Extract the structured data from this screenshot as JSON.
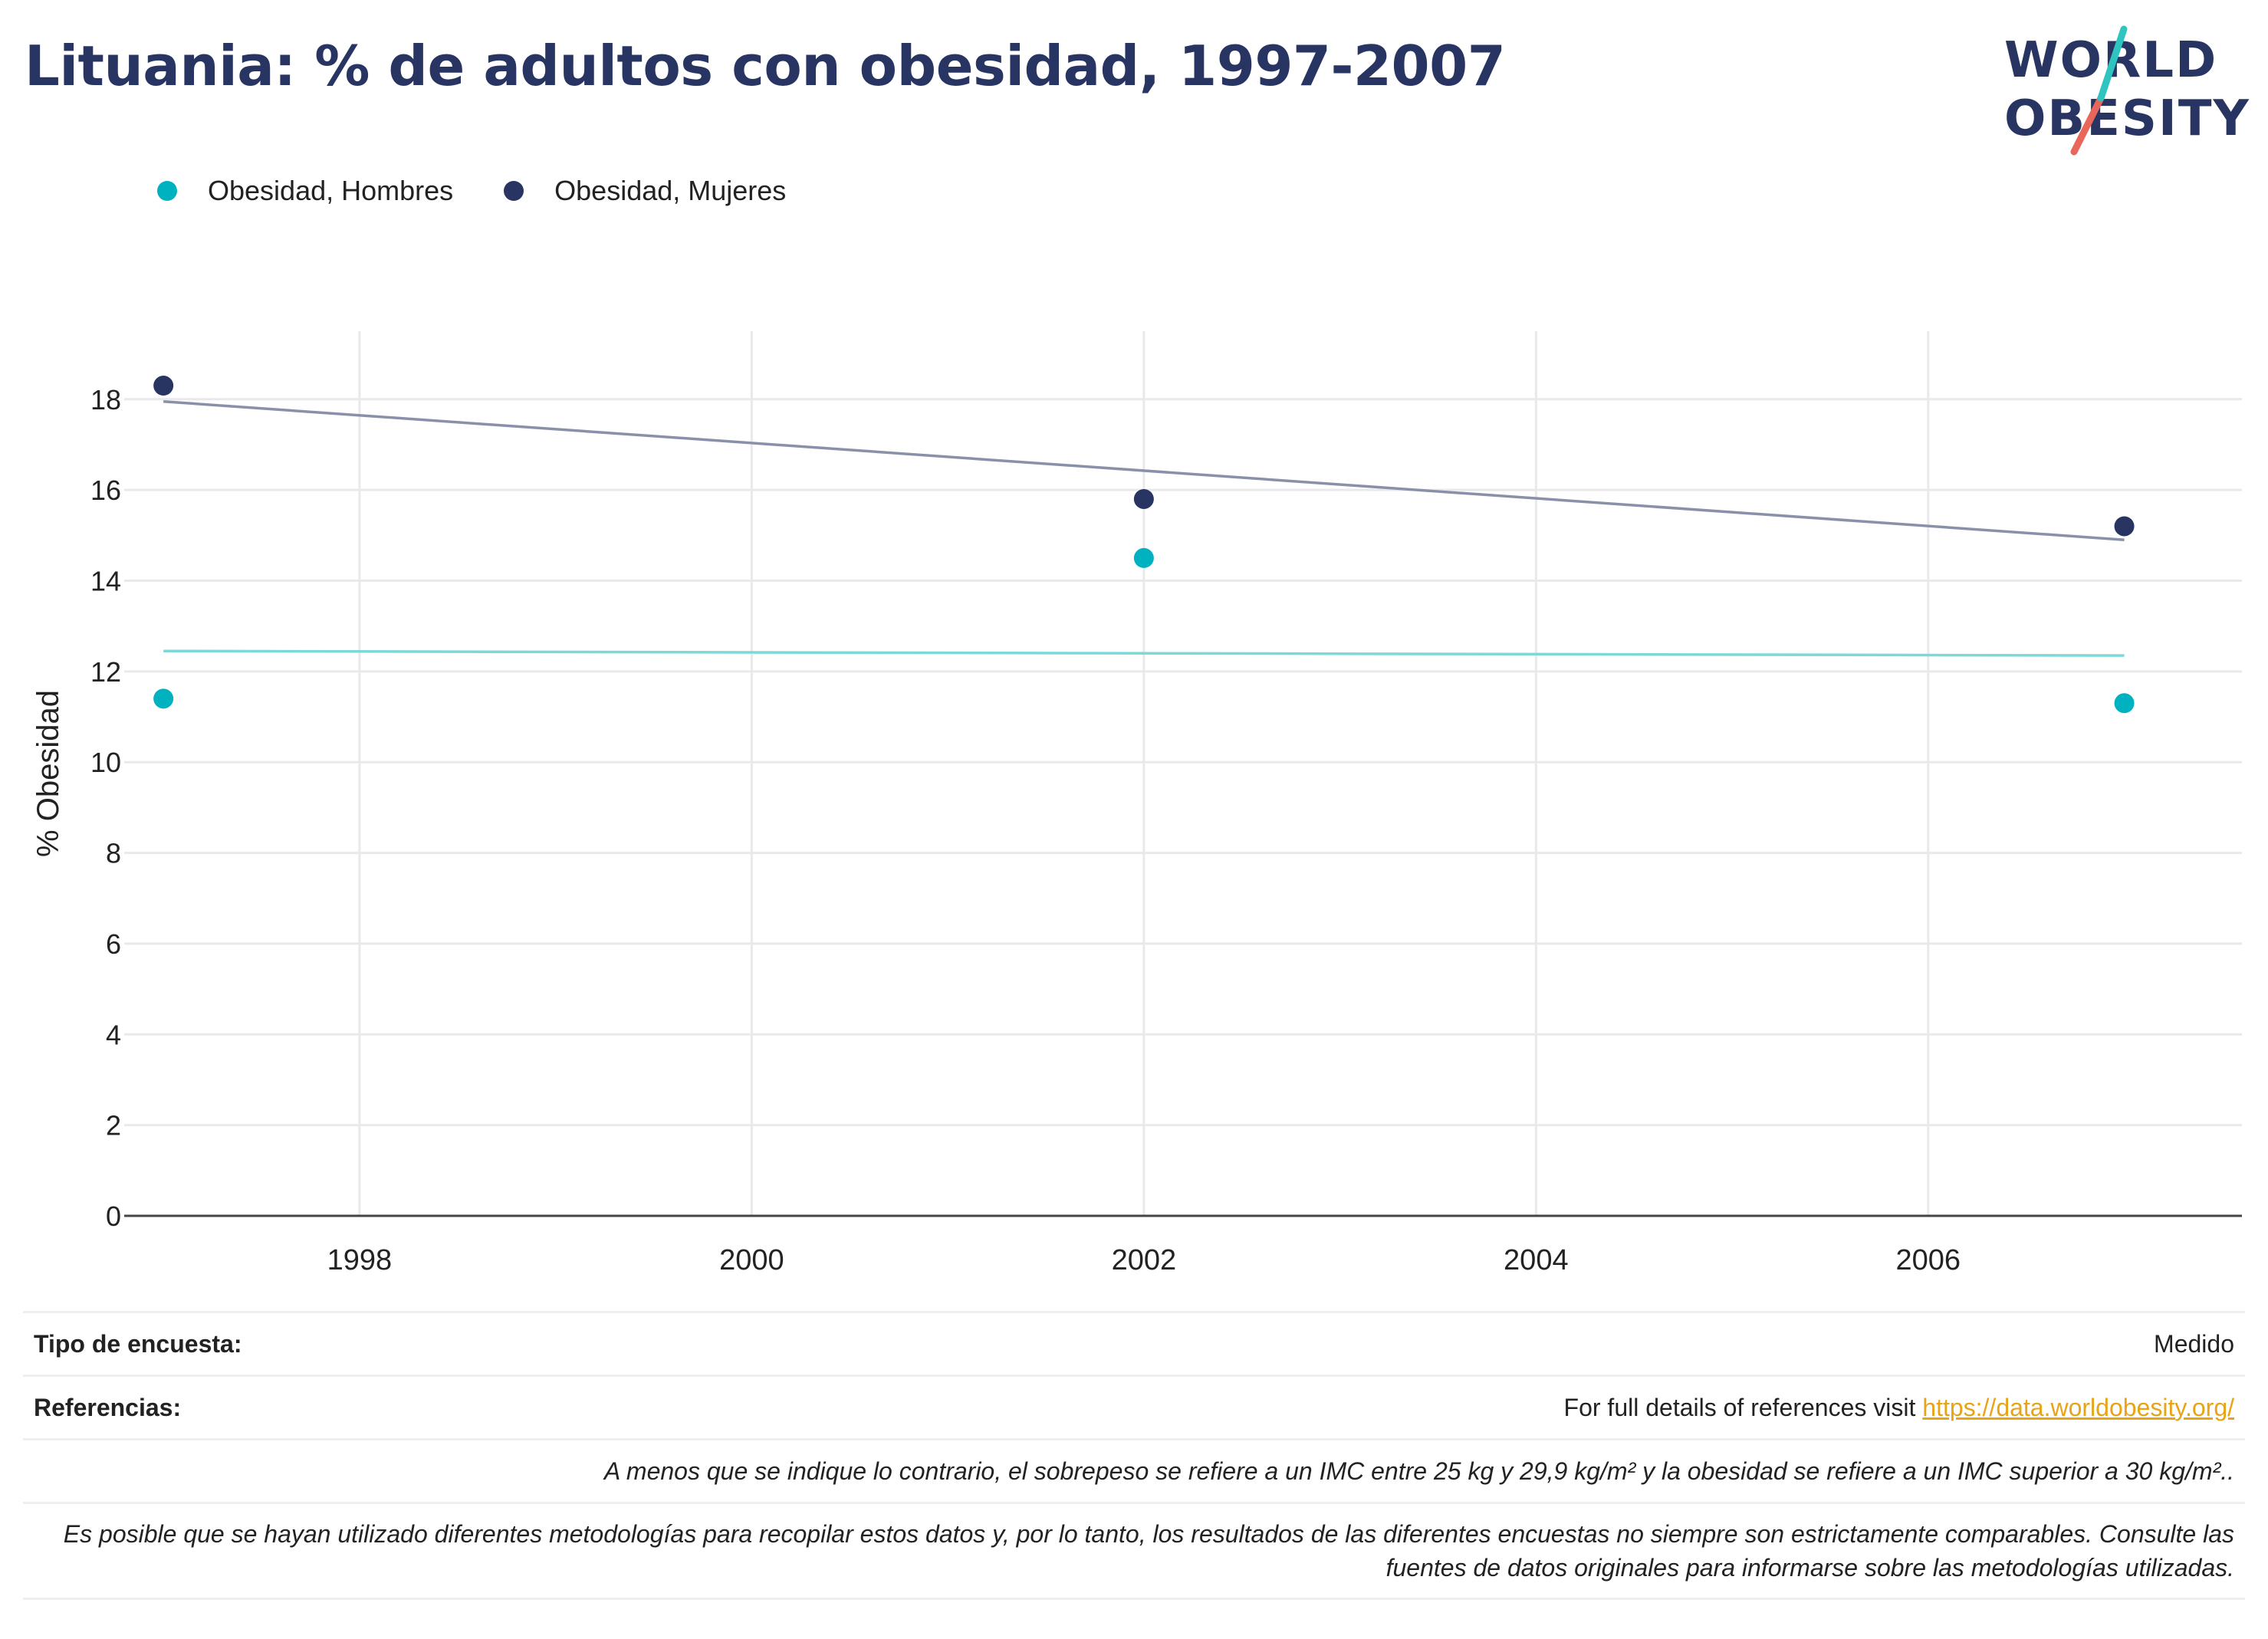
{
  "title": "Lituania: % de adultos con obesidad, 1997-2007",
  "logo": {
    "line1": "WORLD",
    "line2": "OBESITY"
  },
  "legend": [
    {
      "label": "Obesidad, Hombres",
      "color": "#00b2bf"
    },
    {
      "label": "Obesidad, Mujeres",
      "color": "#283562"
    }
  ],
  "chart_data": {
    "type": "scatter",
    "ylabel": "% Obesidad",
    "xlabel": "",
    "xlim": [
      1996.8,
      2007.6
    ],
    "ylim": [
      0,
      19.5
    ],
    "x_ticks": [
      1998,
      2000,
      2002,
      2004,
      2006
    ],
    "y_ticks": [
      0,
      2,
      4,
      6,
      8,
      10,
      12,
      14,
      16,
      18
    ],
    "grid": true,
    "legend_position": "top-left",
    "series": [
      {
        "name": "Obesidad, Hombres",
        "color": "#00b2bf",
        "trend_color": "#7dd8d8",
        "points": [
          {
            "x": 1997,
            "y": 11.4
          },
          {
            "x": 2002,
            "y": 14.5
          },
          {
            "x": 2007,
            "y": 11.3
          }
        ],
        "trend": [
          {
            "x": 1997,
            "y": 12.45
          },
          {
            "x": 2007,
            "y": 12.35
          }
        ]
      },
      {
        "name": "Obesidad, Mujeres",
        "color": "#283562",
        "trend_color": "#8a90a8",
        "points": [
          {
            "x": 1997,
            "y": 18.3
          },
          {
            "x": 2002,
            "y": 15.8
          },
          {
            "x": 2007,
            "y": 15.2
          }
        ],
        "trend": [
          {
            "x": 1997,
            "y": 17.95
          },
          {
            "x": 2007,
            "y": 14.9
          }
        ]
      }
    ]
  },
  "footer": {
    "survey_label": "Tipo de encuesta:",
    "survey_value": "Medido",
    "refs_label": "Referencias:",
    "refs_text": "For full details of references visit ",
    "refs_link": "https://data.worldobesity.org/",
    "note1": "A menos que se indique lo contrario, el sobrepeso se refiere a un IMC entre 25 kg y 29,9 kg/m² y la obesidad se refiere a un IMC superior a 30 kg/m²..",
    "note2": "Es posible que se hayan utilizado diferentes metodologías para recopilar estos datos y, por lo tanto, los resultados de las diferentes encuestas no siempre son estrictamente comparables. Consulte las fuentes de datos originales para informarse sobre las metodologías utilizadas."
  }
}
